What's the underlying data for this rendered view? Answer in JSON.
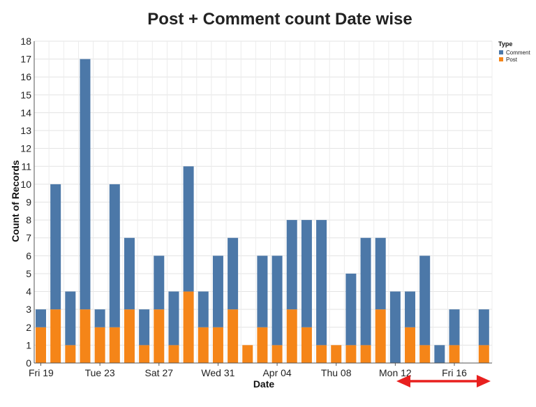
{
  "chart_data": {
    "type": "bar",
    "stacked": true,
    "title": "Post + Comment count Date wise",
    "xlabel": "Date",
    "ylabel": "Count of Records",
    "ylim": [
      0,
      18
    ],
    "yticks": [
      0,
      1,
      2,
      3,
      4,
      5,
      6,
      7,
      8,
      9,
      10,
      11,
      12,
      13,
      14,
      15,
      16,
      17,
      18
    ],
    "grid": true,
    "x_tick_labels": [
      {
        "label": "Fri 19",
        "index": 0
      },
      {
        "label": "Tue 23",
        "index": 4
      },
      {
        "label": "Sat 27",
        "index": 8
      },
      {
        "label": "Wed 31",
        "index": 12
      },
      {
        "label": "Apr 04",
        "index": 16
      },
      {
        "label": "Thu 08",
        "index": 20
      },
      {
        "label": "Mon 12",
        "index": 24
      },
      {
        "label": "Fri 16",
        "index": 28
      }
    ],
    "days": 31,
    "legend": {
      "title": "Type",
      "placement": "top-right",
      "entries": [
        "Comment",
        "Post"
      ]
    },
    "series": [
      {
        "name": "Post",
        "color": "#F58518",
        "values": [
          2,
          3,
          1,
          3,
          2,
          2,
          3,
          1,
          3,
          1,
          4,
          2,
          2,
          3,
          1,
          2,
          1,
          3,
          2,
          1,
          1,
          1,
          1,
          3,
          0,
          2,
          1,
          0,
          1,
          0,
          1
        ]
      },
      {
        "name": "Comment",
        "color": "#4C78A8",
        "values": [
          1,
          7,
          3,
          14,
          1,
          8,
          4,
          2,
          3,
          3,
          7,
          2,
          4,
          4,
          0,
          4,
          5,
          5,
          6,
          7,
          0,
          4,
          6,
          4,
          4,
          2,
          5,
          1,
          2,
          0,
          2
        ]
      }
    ],
    "annotation": {
      "type": "double-arrow",
      "color": "#E8201F"
    }
  }
}
